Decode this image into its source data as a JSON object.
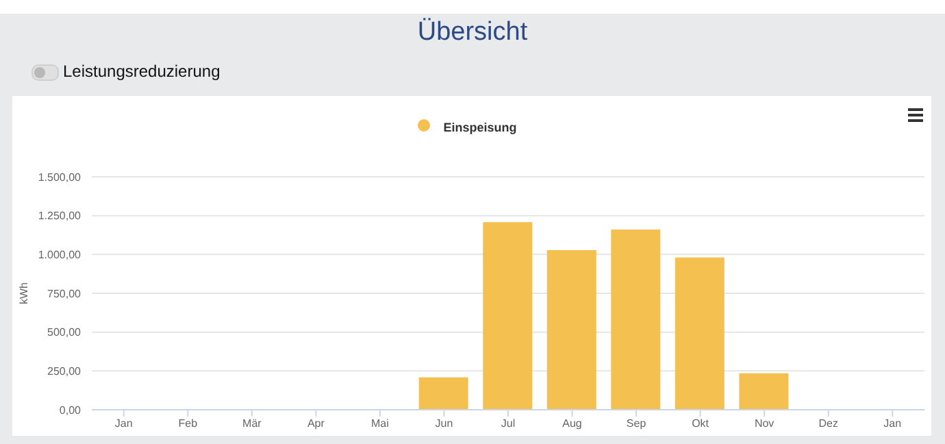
{
  "chart_data": {
    "type": "bar",
    "title": "Übersicht",
    "ylabel": "kWh",
    "annotations": [
      "Leistungsreduzierung"
    ],
    "categories": [
      "Jan",
      "Feb",
      "Mär",
      "Apr",
      "Mai",
      "Jun",
      "Jul",
      "Aug",
      "Sep",
      "Okt",
      "Nov",
      "Dez",
      "Jan"
    ],
    "series": [
      {
        "name": "Einspeisung",
        "color": "#f4c150",
        "values": [
          null,
          null,
          null,
          null,
          null,
          208,
          1208,
          1028,
          1160,
          980,
          235,
          null,
          null
        ]
      }
    ],
    "ylim": [
      0,
      1500
    ],
    "yticks": [
      {
        "value": 0,
        "label": "0,00"
      },
      {
        "value": 250,
        "label": "250,00"
      },
      {
        "value": 500,
        "label": "500,00"
      },
      {
        "value": 750,
        "label": "750,00"
      },
      {
        "value": 1000,
        "label": "1.000,00"
      },
      {
        "value": 1250,
        "label": "1.250,00"
      },
      {
        "value": 1500,
        "label": "1.500,00"
      }
    ],
    "grid": "y",
    "legend": "top",
    "marker": "circle"
  }
}
